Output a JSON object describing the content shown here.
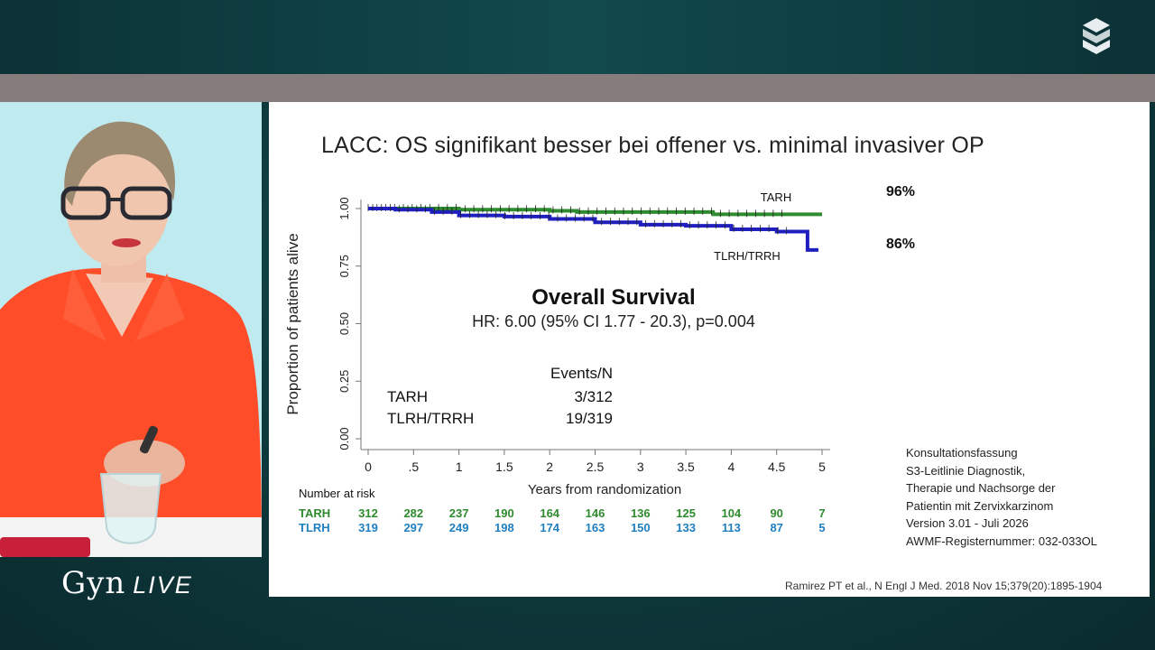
{
  "brand": {
    "name": "Gyn",
    "suffix": "LIVE"
  },
  "slide": {
    "title": "LACC: OS signifikant besser bei offener vs. minimal invasiver OP",
    "tarh_percent": "96%",
    "tlrh_percent": "86%",
    "guideline_lines": [
      "Konsultationsfassung",
      "S3-Leitlinie Diagnostik,",
      "Therapie und Nachsorge der",
      "Patientin mit Zervixkarzinom",
      "Version 3.01 - Juli 2026",
      "AWMF-Registernummer: 032-033OL"
    ],
    "citation": "Ramirez PT et al., N Engl J Med. 2018 Nov 15;379(20):1895-1904"
  },
  "chart_data": {
    "type": "line",
    "title": "Overall Survival",
    "subtitle": "HR: 6.00 (95% CI 1.77 - 20.3), p=0.004",
    "xlabel": "Years from randomization",
    "ylabel": "Proportion of patients alive",
    "xlim": [
      0,
      5
    ],
    "ylim": [
      0,
      1
    ],
    "x_ticks": [
      "0",
      ".5",
      "1",
      "1.5",
      "2",
      "2.5",
      "3",
      "3.5",
      "4",
      "4.5",
      "5"
    ],
    "y_ticks": [
      "0.00",
      "0.25",
      "0.50",
      "0.75",
      "1.00"
    ],
    "series": [
      {
        "name": "TARH",
        "color": "#2e8b2e",
        "points": [
          [
            0,
            1.0
          ],
          [
            0.6,
            1.0
          ],
          [
            1.0,
            0.995
          ],
          [
            2.0,
            0.99
          ],
          [
            2.3,
            0.985
          ],
          [
            3.0,
            0.985
          ],
          [
            3.8,
            0.975
          ],
          [
            4.5,
            0.975
          ],
          [
            5.0,
            0.975
          ]
        ]
      },
      {
        "name": "TLRH/TRRH",
        "color": "#1f1fbf",
        "points": [
          [
            0,
            1.0
          ],
          [
            0.3,
            0.995
          ],
          [
            0.7,
            0.985
          ],
          [
            1.0,
            0.97
          ],
          [
            1.5,
            0.965
          ],
          [
            2.0,
            0.955
          ],
          [
            2.5,
            0.94
          ],
          [
            3.0,
            0.93
          ],
          [
            3.5,
            0.925
          ],
          [
            4.0,
            0.91
          ],
          [
            4.5,
            0.9
          ],
          [
            4.84,
            0.9
          ],
          [
            4.84,
            0.82
          ],
          [
            4.96,
            0.82
          ]
        ]
      }
    ],
    "events_header": "Events/N",
    "events": [
      {
        "name": "TARH",
        "value": "3/312"
      },
      {
        "name": "TLRH/TRRH",
        "value": "19/319"
      }
    ],
    "risk_table": {
      "title": "Number at risk",
      "rows": [
        {
          "label": "TARH",
          "color": "#2e8b2e",
          "values": [
            312,
            282,
            237,
            190,
            164,
            146,
            136,
            125,
            104,
            90,
            7
          ]
        },
        {
          "label": "TLRH",
          "color": "#1f7fbf",
          "values": [
            319,
            297,
            249,
            198,
            174,
            163,
            150,
            133,
            113,
            87,
            5
          ]
        }
      ]
    }
  }
}
